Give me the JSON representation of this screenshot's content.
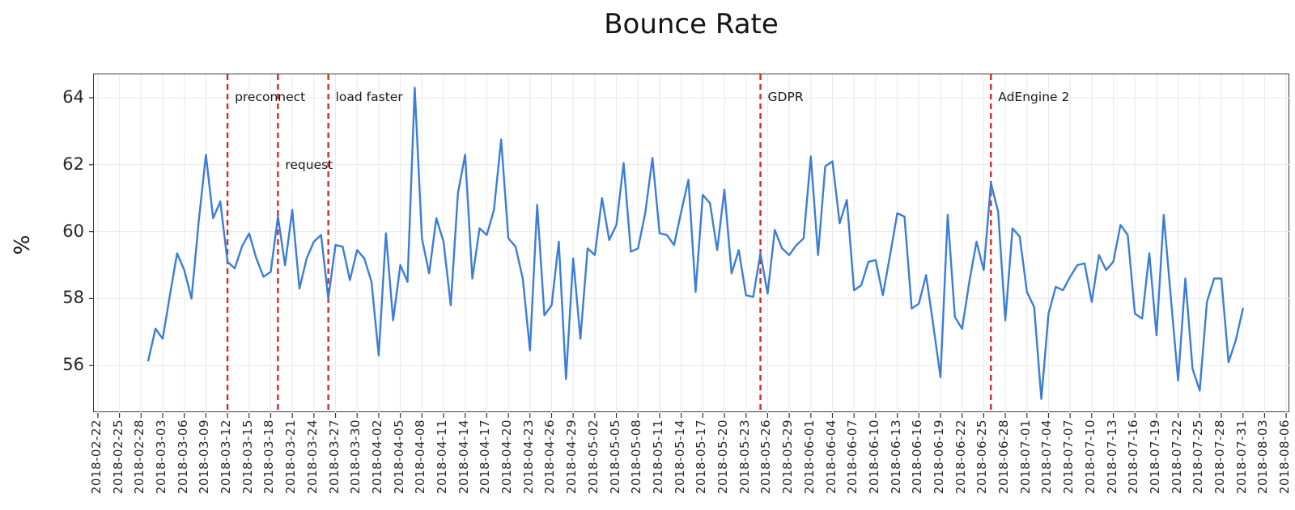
{
  "chart_data": {
    "type": "line",
    "title": "Bounce Rate",
    "ylabel": "%",
    "xlabel": "",
    "grid": true,
    "legend": "none",
    "x_epoch": "2018-02-22",
    "x_domain_days": [
      -0.55,
      165.55
    ],
    "ylim": [
      54.58,
      64.7
    ],
    "y_ticks": [
      56,
      58,
      60,
      62,
      64
    ],
    "x_tick_labels": [
      "2018-02-22",
      "2018-02-25",
      "2018-02-28",
      "2018-03-03",
      "2018-03-06",
      "2018-03-09",
      "2018-03-12",
      "2018-03-15",
      "2018-03-18",
      "2018-03-21",
      "2018-03-24",
      "2018-03-27",
      "2018-03-30",
      "2018-04-02",
      "2018-04-05",
      "2018-04-08",
      "2018-04-11",
      "2018-04-14",
      "2018-04-17",
      "2018-04-20",
      "2018-04-23",
      "2018-04-26",
      "2018-04-29",
      "2018-05-02",
      "2018-05-05",
      "2018-05-08",
      "2018-05-11",
      "2018-05-14",
      "2018-05-17",
      "2018-05-20",
      "2018-05-23",
      "2018-05-26",
      "2018-05-29",
      "2018-06-01",
      "2018-06-04",
      "2018-06-07",
      "2018-06-10",
      "2018-06-13",
      "2018-06-16",
      "2018-06-19",
      "2018-06-22",
      "2018-06-25",
      "2018-06-28",
      "2018-07-01",
      "2018-07-04",
      "2018-07-07",
      "2018-07-10",
      "2018-07-13",
      "2018-07-16",
      "2018-07-19",
      "2018-07-22",
      "2018-07-25",
      "2018-07-28",
      "2018-07-31",
      "2018-08-03",
      "2018-08-06"
    ],
    "series": [
      {
        "name": "bounce-rate",
        "color": "#3b7dd8",
        "start_date": "2018-03-01",
        "values": [
          56.15,
          57.1,
          56.8,
          58.1,
          59.35,
          58.85,
          58.0,
          60.3,
          62.3,
          60.4,
          60.9,
          59.1,
          58.9,
          59.55,
          59.95,
          59.2,
          58.65,
          58.8,
          60.45,
          59.0,
          60.65,
          58.3,
          59.2,
          59.7,
          59.9,
          58.0,
          59.6,
          59.55,
          58.55,
          59.45,
          59.2,
          58.5,
          56.3,
          59.95,
          57.35,
          59.0,
          58.5,
          64.3,
          59.8,
          58.75,
          60.4,
          59.7,
          57.8,
          61.15,
          62.3,
          58.6,
          60.1,
          59.9,
          60.65,
          62.75,
          59.8,
          59.55,
          58.6,
          56.45,
          60.8,
          57.5,
          57.8,
          59.7,
          55.6,
          59.2,
          56.8,
          59.5,
          59.3,
          61.0,
          59.75,
          60.2,
          62.05,
          59.4,
          59.5,
          60.55,
          62.2,
          59.95,
          59.9,
          59.6,
          60.6,
          61.55,
          58.2,
          61.1,
          60.85,
          59.45,
          61.25,
          58.75,
          59.45,
          58.1,
          58.05,
          59.35,
          58.15,
          60.05,
          59.5,
          59.3,
          59.6,
          59.8,
          62.25,
          59.3,
          61.95,
          62.1,
          60.25,
          60.95,
          58.25,
          58.4,
          59.1,
          59.15,
          58.1,
          59.3,
          60.55,
          60.45,
          57.7,
          57.85,
          58.7,
          57.2,
          55.65,
          60.5,
          57.45,
          57.1,
          58.5,
          59.7,
          58.85,
          61.45,
          60.6,
          57.35,
          60.1,
          59.85,
          58.2,
          57.75,
          55.0,
          57.55,
          58.35,
          58.25,
          58.65,
          59.0,
          59.05,
          57.9,
          59.3,
          58.85,
          59.1,
          60.2,
          59.9,
          57.55,
          57.4,
          59.35,
          56.9,
          60.5,
          58.0,
          55.55,
          58.6,
          55.9,
          55.25,
          57.9,
          58.6,
          58.6,
          56.1,
          56.75,
          57.7
        ]
      }
    ],
    "events": [
      {
        "label": "preconnect",
        "date": "2018-03-12",
        "label_dy": 33
      },
      {
        "label": "request",
        "date": "2018-03-19",
        "label_dy": 117
      },
      {
        "label": "load faster",
        "date": "2018-03-26",
        "label_dy": 33
      },
      {
        "label": "GDPR",
        "date": "2018-05-25",
        "label_dy": 33
      },
      {
        "label": "AdEngine 2",
        "date": "2018-06-26",
        "label_dy": 33
      }
    ],
    "colors": {
      "event_line": "#d62b2b",
      "grid": "#e9e9e9",
      "frame": "#3a3a3a",
      "tick_text": "#2b2b2b",
      "annotation_text": "#1a1a1a"
    }
  }
}
